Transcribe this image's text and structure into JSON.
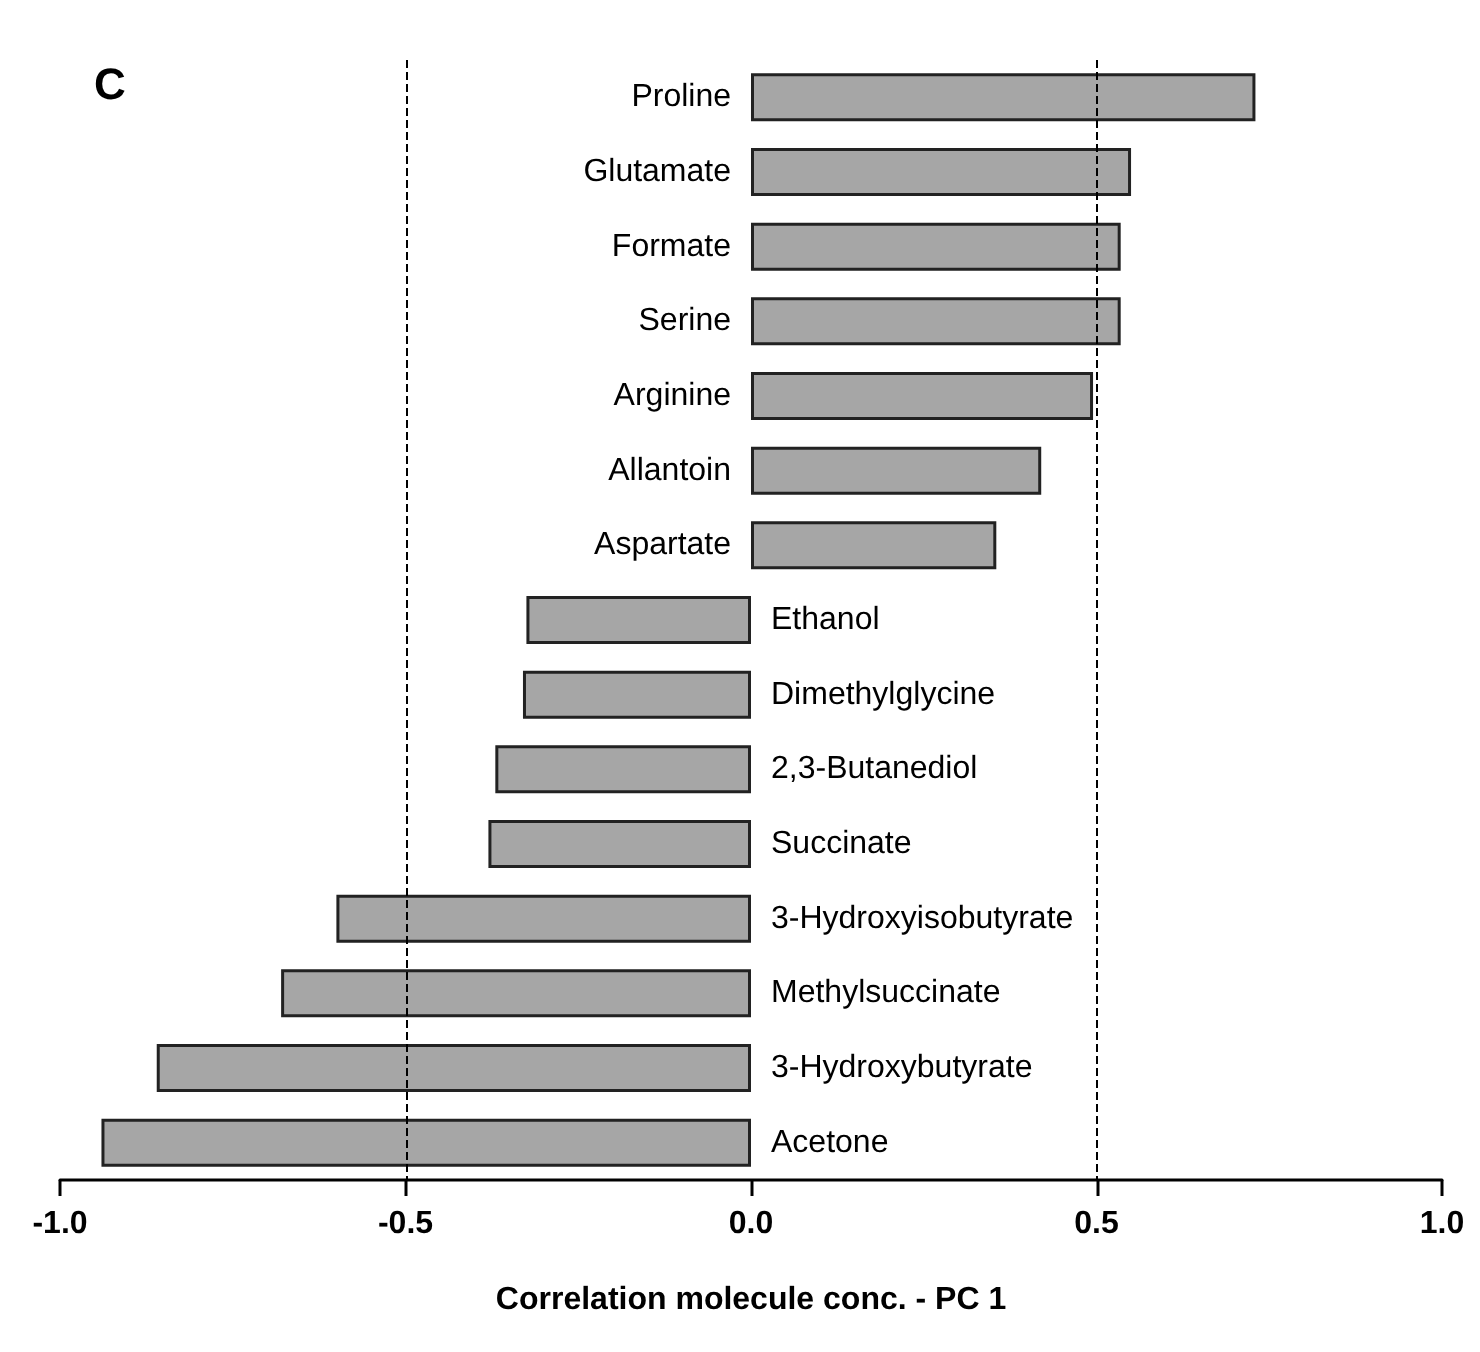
{
  "chart_data": {
    "type": "bar",
    "orientation": "horizontal",
    "title": "C",
    "xlabel": "Correlation molecule conc. - PC 1",
    "categories": [
      "Proline",
      "Glutamate",
      "Formate",
      "Serine",
      "Arginine",
      "Allantoin",
      "Aspartate",
      "Ethanol",
      "Dimethylglycine",
      "2,3-Butanediol",
      "Succinate",
      "3-Hydroxyisobutyrate",
      "Methylsuccinate",
      "3-Hydroxybutyrate",
      "Acetone"
    ],
    "values": [
      0.73,
      0.55,
      0.535,
      0.535,
      0.495,
      0.42,
      0.355,
      -0.325,
      -0.33,
      -0.37,
      -0.38,
      -0.6,
      -0.68,
      -0.86,
      -0.94
    ],
    "color": "#a6a6a6",
    "xlim": [
      -1,
      1
    ],
    "xticks": [
      {
        "value": -1,
        "label": "-1.0"
      },
      {
        "value": -0.5,
        "label": "-0.5"
      },
      {
        "value": 0,
        "label": "0.0"
      },
      {
        "value": 0.5,
        "label": "0.5"
      },
      {
        "value": 1,
        "label": "1.0"
      }
    ],
    "ref_lines": [
      {
        "axis": "x",
        "value": -0.5,
        "line_style": "dashed"
      },
      {
        "axis": "x",
        "value": 0.5,
        "line_style": "dashed"
      }
    ],
    "grid": false
  }
}
